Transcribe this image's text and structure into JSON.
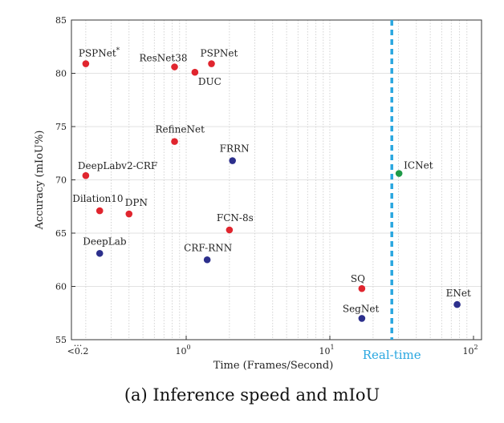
{
  "caption": "(a) Inference speed and mIoU",
  "chart_data": {
    "type": "scatter",
    "xlabel": "Time (Frames/Second)",
    "ylabel": "Accuracy (mIoU%)",
    "x_scale": "log",
    "xlim": [
      0.18,
      100
    ],
    "ylim": [
      55,
      85
    ],
    "grid": true,
    "y_ticks": [
      55,
      60,
      65,
      70,
      75,
      80,
      85
    ],
    "x_tick_labels": [
      "<0.2",
      "10^0",
      "10^1",
      "10^2"
    ],
    "x_break_mark": "...",
    "realtime": {
      "label": "Real-time",
      "x": 27,
      "color": "#2aa7e0"
    },
    "colors": {
      "red": "#e0252e",
      "blue": "#2c2f8c",
      "green": "#1f9a48"
    },
    "points": [
      {
        "name": "PSPNet*",
        "x": 0.2,
        "y": 80.9,
        "color": "red"
      },
      {
        "name": "ResNet38",
        "x": 0.83,
        "y": 80.6,
        "color": "red"
      },
      {
        "name": "DUC",
        "x": 1.15,
        "y": 80.1,
        "color": "red"
      },
      {
        "name": "PSPNet",
        "x": 1.5,
        "y": 80.9,
        "color": "red"
      },
      {
        "name": "RefineNet",
        "x": 0.83,
        "y": 73.6,
        "color": "red"
      },
      {
        "name": "FRRN",
        "x": 2.1,
        "y": 71.8,
        "color": "blue"
      },
      {
        "name": "DeepLabv2-CRF",
        "x": 0.2,
        "y": 70.4,
        "color": "red"
      },
      {
        "name": "Dilation10",
        "x": 0.25,
        "y": 67.1,
        "color": "red"
      },
      {
        "name": "DPN",
        "x": 0.4,
        "y": 66.8,
        "color": "red"
      },
      {
        "name": "FCN-8s",
        "x": 2.0,
        "y": 65.3,
        "color": "red"
      },
      {
        "name": "DeepLab",
        "x": 0.25,
        "y": 63.1,
        "color": "blue"
      },
      {
        "name": "CRF-RNN",
        "x": 1.4,
        "y": 62.5,
        "color": "blue"
      },
      {
        "name": "SQ",
        "x": 16.7,
        "y": 59.8,
        "color": "red"
      },
      {
        "name": "SegNet",
        "x": 16.7,
        "y": 57.0,
        "color": "blue"
      },
      {
        "name": "ICNet",
        "x": 30.3,
        "y": 70.6,
        "color": "green"
      },
      {
        "name": "ENet",
        "x": 76.9,
        "y": 58.3,
        "color": "blue"
      }
    ]
  }
}
